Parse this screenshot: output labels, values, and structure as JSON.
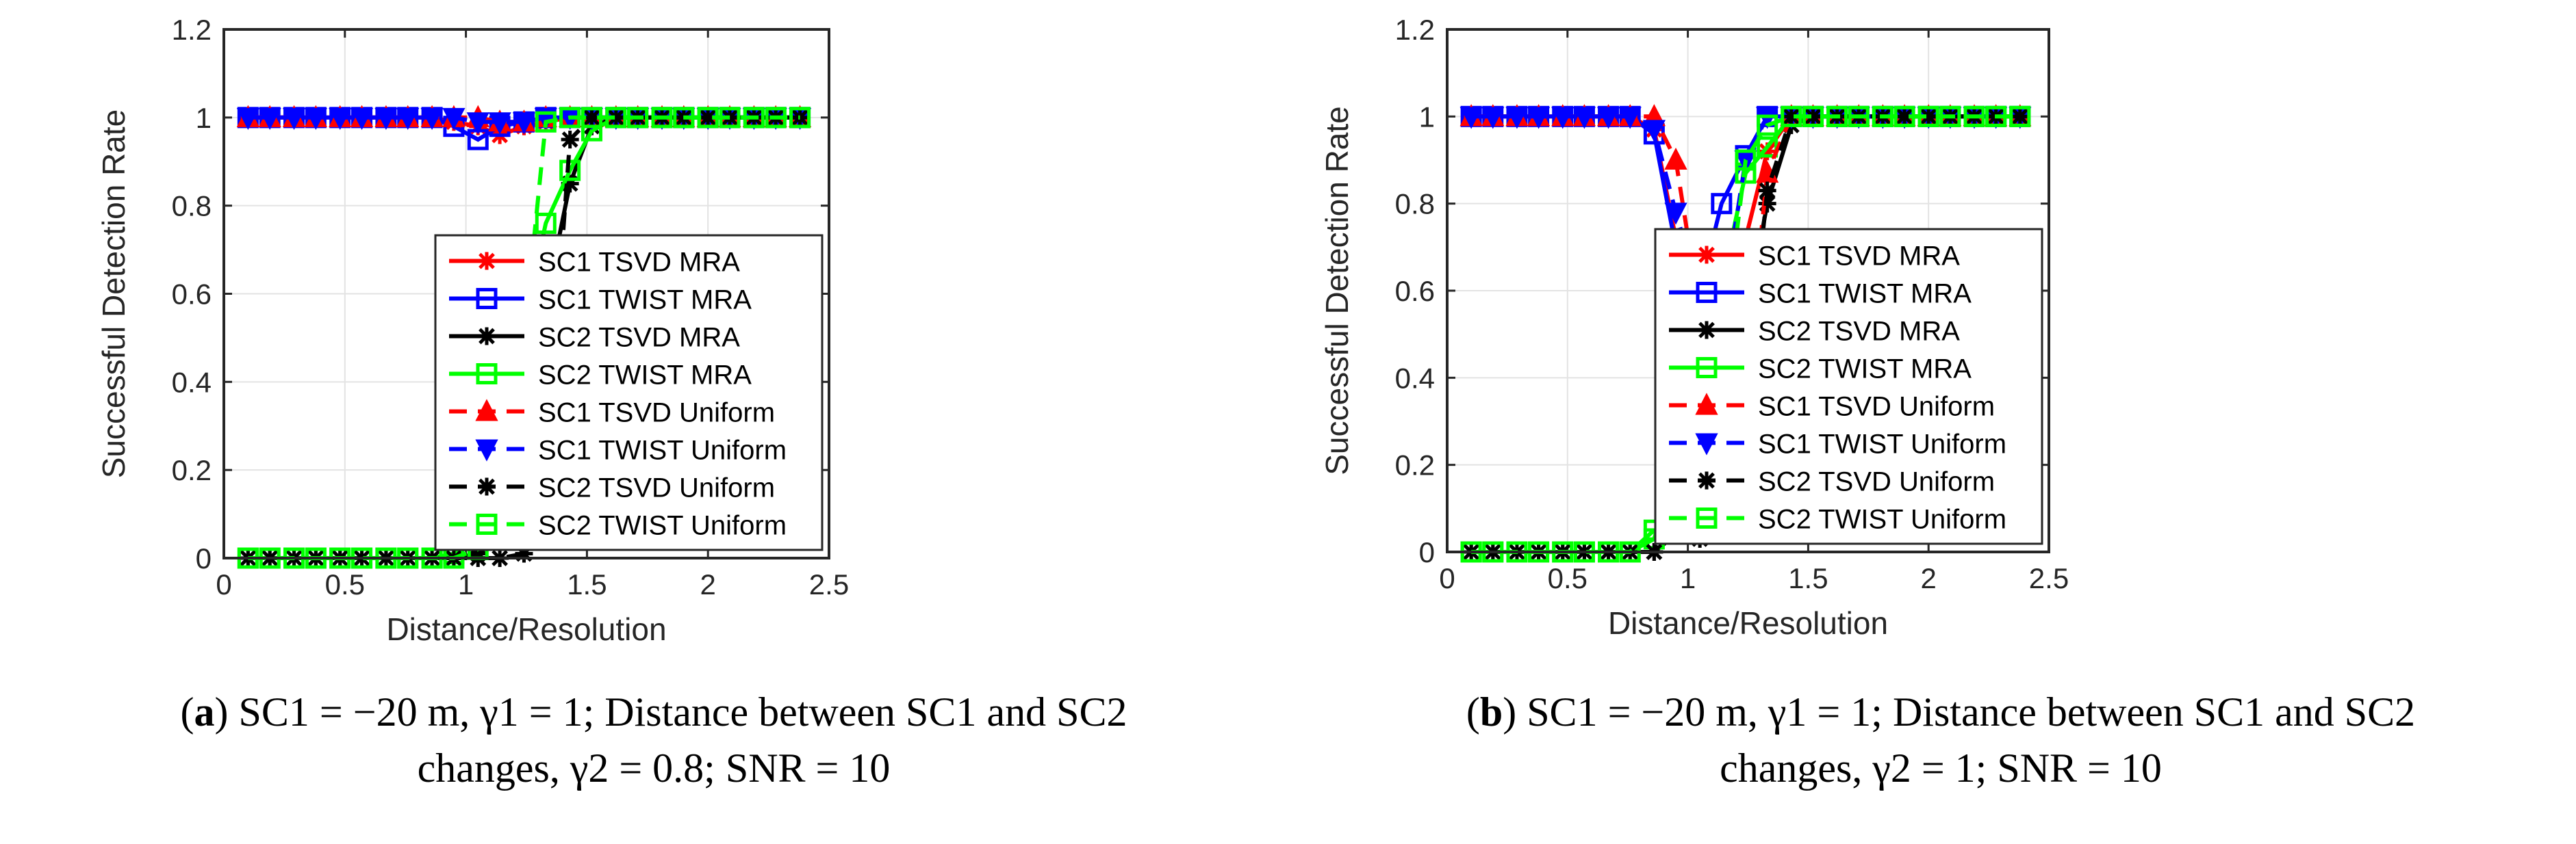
{
  "chart_data": [
    {
      "type": "line",
      "panel_label": "a",
      "caption_rest": "SC1 = −20 m, γ1 = 1; Distance between SC1 and SC2 changes, γ2 = 0.8; SNR = 10",
      "caption_line1": "SC1 = −20 m, γ1 = 1; Distance between SC1 and SC2",
      "caption_line2": "changes, γ2 = 0.8; SNR = 10",
      "xlabel": "Distance/Resolution",
      "ylabel": "Successful Detection Rate",
      "xlim": [
        0,
        2.5
      ],
      "ylim": [
        0,
        1.2
      ],
      "xticks": [
        "0",
        "0.5",
        "1",
        "1.5",
        "2",
        "2.5"
      ],
      "yticks": [
        "0",
        "0.2",
        "0.4",
        "0.6",
        "0.8",
        "1",
        "1.2"
      ],
      "grid": true,
      "legend_position": "bottom-right",
      "x": [
        0.1,
        0.19,
        0.29,
        0.38,
        0.48,
        0.57,
        0.67,
        0.76,
        0.86,
        0.95,
        1.05,
        1.14,
        1.24,
        1.33,
        1.43,
        1.52,
        1.62,
        1.71,
        1.81,
        1.9,
        2.0,
        2.09,
        2.19,
        2.28,
        2.38
      ],
      "series": [
        {
          "name": "SC1 TSVD MRA",
          "color": "#ff0000",
          "dash": "solid",
          "marker": "asterisk",
          "values": [
            1,
            1,
            1,
            1,
            1,
            1,
            1,
            1,
            1,
            0.99,
            0.98,
            0.96,
            0.98,
            0.99,
            1,
            1,
            1,
            1,
            1,
            1,
            1,
            1,
            1,
            1,
            1
          ]
        },
        {
          "name": "SC1 TWIST MRA",
          "color": "#0000ff",
          "dash": "solid",
          "marker": "square",
          "values": [
            1,
            1,
            1,
            1,
            1,
            1,
            1,
            1,
            1,
            0.98,
            0.95,
            0.98,
            0.99,
            1,
            1,
            1,
            1,
            1,
            1,
            1,
            1,
            1,
            1,
            1,
            1
          ]
        },
        {
          "name": "SC2 TSVD MRA",
          "color": "#000000",
          "dash": "solid",
          "marker": "asterisk",
          "values": [
            0,
            0,
            0,
            0,
            0,
            0,
            0,
            0,
            0,
            0,
            0.01,
            0.06,
            0.23,
            0.58,
            0.85,
            0.98,
            1,
            1,
            1,
            1,
            1,
            1,
            1,
            1,
            1
          ]
        },
        {
          "name": "SC2 TWIST MRA",
          "color": "#00ff00",
          "dash": "solid",
          "marker": "square",
          "values": [
            0,
            0,
            0,
            0,
            0,
            0,
            0,
            0,
            0,
            0.01,
            0.05,
            0.27,
            0.53,
            0.76,
            0.88,
            0.97,
            1,
            1,
            1,
            1,
            1,
            1,
            1,
            1,
            1
          ]
        },
        {
          "name": "SC1 TSVD Uniform",
          "color": "#ff0000",
          "dash": "dashed",
          "marker": "triangle-up",
          "values": [
            1,
            1,
            1,
            1,
            1,
            1,
            1,
            1,
            1,
            1,
            1,
            0.99,
            0.99,
            1,
            1,
            1,
            1,
            1,
            1,
            1,
            1,
            1,
            1,
            1,
            1
          ]
        },
        {
          "name": "SC1 TWIST Uniform",
          "color": "#0000ff",
          "dash": "dashed",
          "marker": "triangle-down",
          "values": [
            1,
            1,
            1,
            1,
            1,
            1,
            1,
            1,
            1,
            1,
            0.99,
            0.99,
            0.99,
            1,
            1,
            1,
            1,
            1,
            1,
            1,
            1,
            1,
            1,
            1,
            1
          ]
        },
        {
          "name": "SC2 TSVD Uniform",
          "color": "#000000",
          "dash": "dashed",
          "marker": "asterisk",
          "values": [
            0,
            0,
            0,
            0,
            0,
            0,
            0,
            0,
            0,
            0,
            0,
            0,
            0.01,
            0.2,
            0.95,
            1,
            1,
            1,
            1,
            1,
            1,
            1,
            1,
            1,
            1
          ]
        },
        {
          "name": "SC2 TWIST Uniform",
          "color": "#00ff00",
          "dash": "dashed",
          "marker": "square",
          "values": [
            0,
            0,
            0,
            0,
            0,
            0,
            0,
            0,
            0,
            0,
            0.02,
            0.12,
            0.5,
            0.99,
            1,
            1,
            1,
            1,
            1,
            1,
            1,
            1,
            1,
            1,
            1
          ]
        }
      ]
    },
    {
      "type": "line",
      "panel_label": "b",
      "caption_line1": "SC1 = −20 m, γ1 = 1; Distance between SC1 and SC2",
      "caption_line2": "changes, γ2 = 1; SNR = 10",
      "xlabel": "Distance/Resolution",
      "ylabel": "Successful Detection Rate",
      "xlim": [
        0,
        2.5
      ],
      "ylim": [
        0,
        1.2
      ],
      "xticks": [
        "0",
        "0.5",
        "1",
        "1.5",
        "2",
        "2.5"
      ],
      "yticks": [
        "0",
        "0.2",
        "0.4",
        "0.6",
        "0.8",
        "1",
        "1.2"
      ],
      "grid": true,
      "legend_position": "bottom-right",
      "x": [
        0.1,
        0.19,
        0.29,
        0.38,
        0.48,
        0.57,
        0.67,
        0.76,
        0.86,
        0.95,
        1.05,
        1.14,
        1.24,
        1.33,
        1.43,
        1.52,
        1.62,
        1.71,
        1.81,
        1.9,
        2.0,
        2.09,
        2.19,
        2.28,
        2.38
      ],
      "series": [
        {
          "name": "SC1 TSVD MRA",
          "color": "#ff0000",
          "dash": "solid",
          "marker": "asterisk",
          "values": [
            1,
            1,
            1,
            1,
            1,
            1,
            1,
            1,
            0.97,
            0.72,
            0.51,
            0.55,
            0.72,
            0.92,
            1,
            1,
            1,
            1,
            1,
            1,
            1,
            1,
            1,
            1,
            1
          ]
        },
        {
          "name": "SC1 TWIST MRA",
          "color": "#0000ff",
          "dash": "solid",
          "marker": "square",
          "values": [
            1,
            1,
            1,
            1,
            1,
            1,
            1,
            1,
            0.96,
            0.7,
            0.6,
            0.8,
            0.91,
            1,
            1,
            1,
            1,
            1,
            1,
            1,
            1,
            1,
            1,
            1,
            1
          ]
        },
        {
          "name": "SC2 TSVD MRA",
          "color": "#000000",
          "dash": "solid",
          "marker": "asterisk",
          "values": [
            0,
            0,
            0,
            0,
            0,
            0,
            0,
            0,
            0,
            0.04,
            0.03,
            0.2,
            0.53,
            0.8,
            0.98,
            1,
            1,
            1,
            1,
            1,
            1,
            1,
            1,
            1,
            1
          ]
        },
        {
          "name": "SC2 TWIST MRA",
          "color": "#00ff00",
          "dash": "solid",
          "marker": "square",
          "values": [
            0,
            0,
            0,
            0,
            0,
            0,
            0,
            0,
            0.03,
            0.2,
            0.27,
            0.61,
            0.87,
            0.93,
            1,
            1,
            1,
            1,
            1,
            1,
            1,
            1,
            1,
            1,
            1
          ]
        },
        {
          "name": "SC1 TSVD Uniform",
          "color": "#ff0000",
          "dash": "dashed",
          "marker": "triangle-up",
          "values": [
            1,
            1,
            1,
            1,
            1,
            1,
            1,
            1,
            1,
            0.9,
            0.55,
            0.33,
            0.38,
            0.87,
            1,
            1,
            1,
            1,
            1,
            1,
            1,
            1,
            1,
            1,
            1
          ]
        },
        {
          "name": "SC1 TWIST Uniform",
          "color": "#0000ff",
          "dash": "dashed",
          "marker": "triangle-down",
          "values": [
            1,
            1,
            1,
            1,
            1,
            1,
            1,
            1,
            0.97,
            0.78,
            0.59,
            0.55,
            0.9,
            1,
            1,
            1,
            1,
            1,
            1,
            1,
            1,
            1,
            1,
            1,
            1
          ]
        },
        {
          "name": "SC2 TSVD Uniform",
          "color": "#000000",
          "dash": "dashed",
          "marker": "asterisk",
          "values": [
            0,
            0,
            0,
            0,
            0,
            0,
            0,
            0,
            0,
            0.1,
            0.38,
            0.25,
            0.35,
            0.83,
            1,
            1,
            1,
            1,
            1,
            1,
            1,
            1,
            1,
            1,
            1
          ]
        },
        {
          "name": "SC2 TWIST Uniform",
          "color": "#00ff00",
          "dash": "dashed",
          "marker": "square",
          "values": [
            0,
            0,
            0,
            0,
            0,
            0,
            0,
            0,
            0.05,
            0.22,
            0.5,
            0.45,
            0.9,
            0.98,
            1,
            1,
            1,
            1,
            1,
            1,
            1,
            1,
            1,
            1,
            1
          ]
        }
      ]
    }
  ]
}
